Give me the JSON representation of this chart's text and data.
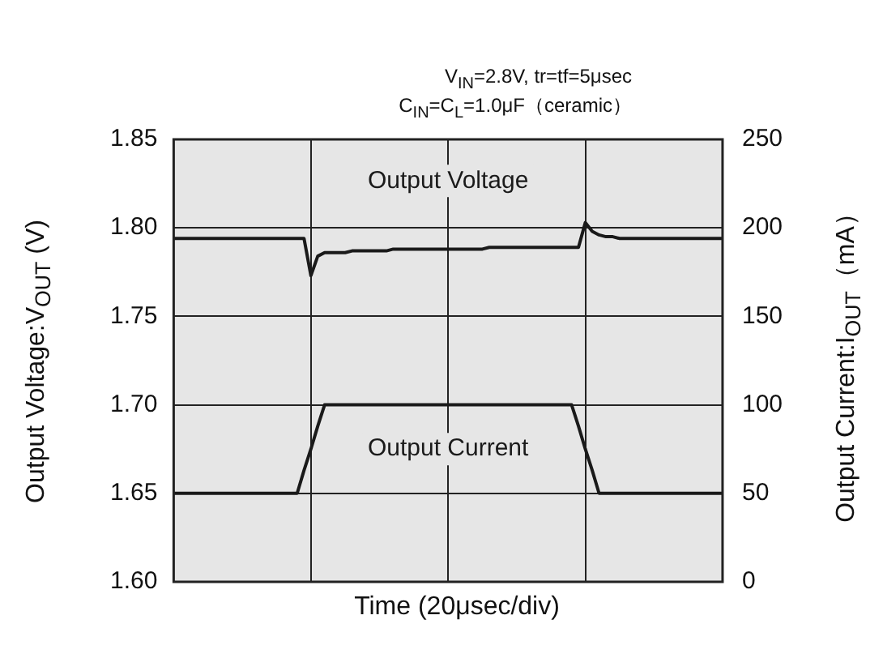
{
  "chart_data": {
    "type": "line",
    "xlabel": "Time (20μsec/div)",
    "ylabel": "Output Voltage:V$_{OUT}$ (V)",
    "y2label": "Output Current:I$_{OUT}$（mA）",
    "annotations": [
      "V$_{IN}$=2.8V, tr=tf=5μsec",
      "C$_{IN}$=C$_{L}$=1.0μF（ceramic）"
    ],
    "categories": [
      null,
      null,
      null,
      null,
      null,
      null,
      null,
      null,
      null,
      null,
      null,
      null,
      null,
      null,
      null,
      null,
      null,
      null,
      null,
      null,
      null,
      null,
      null,
      null,
      null,
      null,
      null,
      null,
      null,
      null,
      null,
      null,
      null,
      null,
      null,
      null,
      null,
      null,
      null,
      null,
      null,
      null,
      null,
      null,
      null,
      null,
      null,
      null,
      null,
      null,
      null,
      null,
      null,
      null,
      null,
      null,
      null,
      null,
      null,
      null,
      null,
      null,
      null,
      null,
      null,
      null,
      null,
      null,
      null,
      null,
      null,
      null,
      null,
      null,
      null,
      null,
      null,
      null,
      null,
      null,
      null
    ],
    "series": [
      {
        "name": "Output Voltage",
        "color": "#1a1a1a",
        "values": [
          1.794,
          1.794,
          1.794,
          1.794,
          1.794,
          1.794,
          1.794,
          1.794,
          1.794,
          1.794,
          1.794,
          1.794,
          1.794,
          1.794,
          1.794,
          1.794,
          1.794,
          1.794,
          1.794,
          1.794,
          1.773,
          1.784,
          1.786,
          1.786,
          1.786,
          1.786,
          1.787,
          1.787,
          1.787,
          1.787,
          1.787,
          1.787,
          1.788,
          1.788,
          1.788,
          1.788,
          1.788,
          1.788,
          1.788,
          1.788,
          1.788,
          1.788,
          1.788,
          1.788,
          1.788,
          1.788,
          1.789,
          1.789,
          1.789,
          1.789,
          1.789,
          1.789,
          1.789,
          1.789,
          1.789,
          1.789,
          1.789,
          1.789,
          1.789,
          1.789,
          1.803,
          1.798,
          1.796,
          1.795,
          1.795,
          1.794,
          1.794,
          1.794,
          1.794,
          1.794,
          1.794,
          1.794,
          1.794,
          1.794,
          1.794,
          1.794,
          1.794,
          1.794,
          1.794,
          1.794,
          1.794
        ]
      },
      {
        "name": "Output Current",
        "color": "#1a1a1a",
        "axis": "y2",
        "values": [
          50,
          50,
          50,
          50,
          50,
          50,
          50,
          50,
          50,
          50,
          50,
          50,
          50,
          50,
          50,
          50,
          50,
          50,
          50,
          63,
          75,
          88,
          100,
          100,
          100,
          100,
          100,
          100,
          100,
          100,
          100,
          100,
          100,
          100,
          100,
          100,
          100,
          100,
          100,
          100,
          100,
          100,
          100,
          100,
          100,
          100,
          100,
          100,
          100,
          100,
          100,
          100,
          100,
          100,
          100,
          100,
          100,
          100,
          100,
          88,
          75,
          63,
          50,
          50,
          50,
          50,
          50,
          50,
          50,
          50,
          50,
          50,
          50,
          50,
          50,
          50,
          50,
          50,
          50,
          50,
          50
        ]
      }
    ],
    "ylim": [
      1.6,
      1.85
    ],
    "yticks": [
      {
        "value": 1.6,
        "label": "1.60"
      },
      1.65,
      {
        "value": 1.7,
        "label": "1.70"
      },
      1.75,
      {
        "value": 1.8,
        "label": "1.80"
      },
      1.85
    ],
    "y2lim": [
      0,
      250
    ],
    "y2ticks": [
      0,
      50,
      100,
      150,
      200,
      250
    ],
    "grid": true,
    "legend": false,
    "marker": "none",
    "line_style": "solid"
  }
}
